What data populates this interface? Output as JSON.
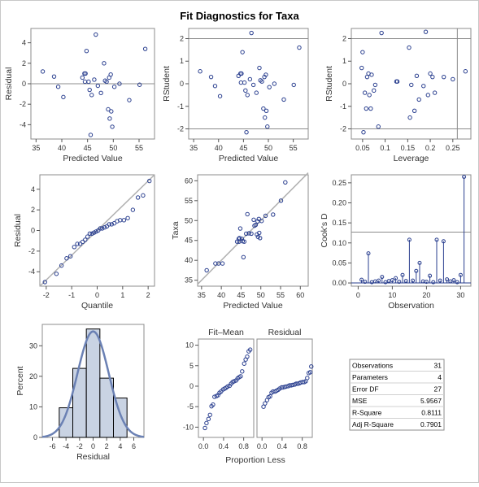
{
  "title": "Fit Diagnostics for Taxa",
  "colors": {
    "marker": "#2a3f8f",
    "ref_line": "#8c8c8c",
    "fit_line": "#b0b0b0",
    "bar_fill": "#c9d3e3",
    "curve": "#6b81b4"
  },
  "chart_data": [
    {
      "id": "residual-vs-predicted",
      "type": "scatter",
      "xlabel": "Predicted Value",
      "ylabel": "Residual",
      "xlim": [
        34,
        58
      ],
      "ylim": [
        -5.4,
        5.4
      ],
      "xticks": [
        35,
        40,
        45,
        50,
        55
      ],
      "yticks": [
        -4,
        -2,
        0,
        2,
        4
      ],
      "ref_y": [
        0
      ],
      "points": [
        [
          36.3,
          1.2
        ],
        [
          38.5,
          0.7
        ],
        [
          39.3,
          -0.3
        ],
        [
          40.3,
          -1.3
        ],
        [
          44,
          0.6
        ],
        [
          44.4,
          1
        ],
        [
          44.6,
          1
        ],
        [
          44.8,
          3.2
        ],
        [
          44.5,
          0.2
        ],
        [
          45.2,
          0.2
        ],
        [
          45.4,
          -0.6
        ],
        [
          45.6,
          -5
        ],
        [
          45.8,
          -1.1
        ],
        [
          46.3,
          0.4
        ],
        [
          46.6,
          4.8
        ],
        [
          47,
          -0.2
        ],
        [
          47.6,
          -0.9
        ],
        [
          48.2,
          2
        ],
        [
          48.7,
          0.2
        ],
        [
          48.4,
          0.3
        ],
        [
          49,
          -2.5
        ],
        [
          49.2,
          0.6
        ],
        [
          49.5,
          0.9
        ],
        [
          49.3,
          -3.4
        ],
        [
          49.8,
          -4.2
        ],
        [
          49.6,
          -2.7
        ],
        [
          50.2,
          -0.3
        ],
        [
          51.2,
          0
        ],
        [
          53.1,
          -1.6
        ],
        [
          55.1,
          -0.1
        ],
        [
          56.2,
          3.4
        ]
      ]
    },
    {
      "id": "rstudent-vs-predicted",
      "type": "scatter",
      "xlabel": "Predicted Value",
      "ylabel": "RStudent",
      "xlim": [
        34,
        58
      ],
      "ylim": [
        -2.45,
        2.45
      ],
      "xticks": [
        35,
        40,
        45,
        50,
        55
      ],
      "yticks": [
        -2,
        -1,
        0,
        1,
        2
      ],
      "ref_y": [
        -2,
        2
      ],
      "points": [
        [
          36.3,
          0.55
        ],
        [
          38.5,
          0.3
        ],
        [
          39.3,
          -0.1
        ],
        [
          40.3,
          -0.55
        ],
        [
          44,
          0.35
        ],
        [
          44.4,
          0.45
        ],
        [
          44.6,
          0.45
        ],
        [
          44.8,
          1.4
        ],
        [
          44.5,
          0.05
        ],
        [
          45.2,
          0.05
        ],
        [
          45.4,
          -0.3
        ],
        [
          45.6,
          -2.15
        ],
        [
          45.8,
          -0.5
        ],
        [
          46.3,
          0.2
        ],
        [
          46.6,
          2.25
        ],
        [
          47,
          -0.05
        ],
        [
          47.6,
          -0.4
        ],
        [
          48.2,
          0.7
        ],
        [
          48.7,
          0.1
        ],
        [
          48.4,
          0.15
        ],
        [
          49,
          -1.1
        ],
        [
          49.2,
          0.3
        ],
        [
          49.5,
          0.4
        ],
        [
          49.3,
          -1.5
        ],
        [
          49.8,
          -1.9
        ],
        [
          49.6,
          -1.2
        ],
        [
          50.2,
          -0.15
        ],
        [
          51.2,
          0
        ],
        [
          53.1,
          -0.7
        ],
        [
          55.1,
          -0.05
        ],
        [
          56.2,
          1.6
        ]
      ]
    },
    {
      "id": "rstudent-vs-leverage",
      "type": "scatter",
      "xlabel": "Leverage",
      "ylabel": "RStudent",
      "xlim": [
        0.025,
        0.29
      ],
      "ylim": [
        -2.45,
        2.45
      ],
      "xticks": [
        0.05,
        0.1,
        0.15,
        0.2,
        0.25
      ],
      "yticks": [
        -2,
        -1,
        0,
        1,
        2
      ],
      "ref_y": [
        -2,
        2
      ],
      "ref_x": [
        0.26
      ],
      "points": [
        [
          0.048,
          0.7
        ],
        [
          0.05,
          1.4
        ],
        [
          0.052,
          -2.15
        ],
        [
          0.055,
          -0.4
        ],
        [
          0.058,
          -1.1
        ],
        [
          0.06,
          0.3
        ],
        [
          0.063,
          0.45
        ],
        [
          0.065,
          -0.5
        ],
        [
          0.068,
          -1.1
        ],
        [
          0.07,
          0.4
        ],
        [
          0.075,
          -0.3
        ],
        [
          0.078,
          -0.05
        ],
        [
          0.085,
          -1.9
        ],
        [
          0.092,
          2.25
        ],
        [
          0.125,
          0.1
        ],
        [
          0.127,
          0.1
        ],
        [
          0.153,
          1.6
        ],
        [
          0.155,
          -1.5
        ],
        [
          0.158,
          -0.05
        ],
        [
          0.165,
          -1.2
        ],
        [
          0.17,
          0.35
        ],
        [
          0.175,
          -0.7
        ],
        [
          0.185,
          -0.1
        ],
        [
          0.19,
          2.3
        ],
        [
          0.195,
          -0.5
        ],
        [
          0.2,
          0.45
        ],
        [
          0.205,
          0.3
        ],
        [
          0.21,
          -0.4
        ],
        [
          0.23,
          0.3
        ],
        [
          0.25,
          0.2
        ],
        [
          0.278,
          0.55
        ]
      ]
    },
    {
      "id": "residual-qq",
      "type": "scatter",
      "xlabel": "Quantile",
      "ylabel": "Residual",
      "xlim": [
        -2.25,
        2.25
      ],
      "ylim": [
        -5.4,
        5.4
      ],
      "xticks": [
        -2,
        -1,
        0,
        1,
        2
      ],
      "yticks": [
        -4,
        -2,
        0,
        2,
        4
      ],
      "fit_line": [
        [
          -2.25,
          -5.4
        ],
        [
          2.25,
          5.4
        ]
      ],
      "points": [
        [
          -2.05,
          -5
        ],
        [
          -1.6,
          -4.2
        ],
        [
          -1.4,
          -3.4
        ],
        [
          -1.2,
          -2.7
        ],
        [
          -1.05,
          -2.5
        ],
        [
          -0.9,
          -1.6
        ],
        [
          -0.78,
          -1.3
        ],
        [
          -0.67,
          -1.3
        ],
        [
          -0.57,
          -1.1
        ],
        [
          -0.47,
          -0.9
        ],
        [
          -0.38,
          -0.6
        ],
        [
          -0.29,
          -0.3
        ],
        [
          -0.2,
          -0.3
        ],
        [
          -0.12,
          -0.2
        ],
        [
          -0.04,
          -0.1
        ],
        [
          0.04,
          0
        ],
        [
          0.12,
          0.2
        ],
        [
          0.2,
          0.2
        ],
        [
          0.29,
          0.3
        ],
        [
          0.38,
          0.4
        ],
        [
          0.47,
          0.6
        ],
        [
          0.57,
          0.6
        ],
        [
          0.67,
          0.7
        ],
        [
          0.78,
          0.9
        ],
        [
          0.9,
          1
        ],
        [
          1.05,
          1
        ],
        [
          1.2,
          1.2
        ],
        [
          1.4,
          2
        ],
        [
          1.6,
          3.2
        ],
        [
          2.05,
          4.8
        ],
        [
          1.8,
          3.4
        ]
      ]
    },
    {
      "id": "observed-vs-predicted",
      "type": "scatter",
      "xlabel": "Predicted Value",
      "ylabel": "Taxa",
      "xlim": [
        34,
        62
      ],
      "ylim": [
        33.5,
        61.5
      ],
      "xticks": [
        35,
        40,
        45,
        50,
        55,
        60
      ],
      "yticks": [
        35,
        40,
        45,
        50,
        55,
        60
      ],
      "fit_line": [
        [
          34,
          34
        ],
        [
          62,
          62
        ]
      ],
      "points": [
        [
          36.3,
          37.5
        ],
        [
          38.5,
          39.2
        ],
        [
          39.3,
          39.2
        ],
        [
          40.3,
          39.2
        ],
        [
          44,
          44.7
        ],
        [
          44.4,
          45.4
        ],
        [
          44.6,
          45.6
        ],
        [
          44.8,
          48
        ],
        [
          44.5,
          44.7
        ],
        [
          45.2,
          45.4
        ],
        [
          45.4,
          44.8
        ],
        [
          45.6,
          40.8
        ],
        [
          45.8,
          44.7
        ],
        [
          46.3,
          46.7
        ],
        [
          46.6,
          51.6
        ],
        [
          47,
          46.8
        ],
        [
          47.6,
          46.7
        ],
        [
          48.2,
          50.2
        ],
        [
          48.7,
          48.9
        ],
        [
          48.4,
          48.7
        ],
        [
          49,
          46.5
        ],
        [
          49.2,
          49.8
        ],
        [
          49.5,
          50.4
        ],
        [
          49.3,
          45.9
        ],
        [
          49.8,
          45.6
        ],
        [
          49.6,
          46.9
        ],
        [
          50.2,
          49.9
        ],
        [
          51.2,
          51.2
        ],
        [
          53.1,
          51.5
        ],
        [
          55.1,
          55
        ],
        [
          56.2,
          59.6
        ]
      ]
    },
    {
      "id": "cooks-d",
      "type": "needle",
      "xlabel": "Observation",
      "ylabel": "Cook's D",
      "xlim": [
        -2,
        33
      ],
      "ylim": [
        -0.008,
        0.27
      ],
      "xticks": [
        0,
        10,
        20,
        30
      ],
      "yticks": [
        0.0,
        0.05,
        0.1,
        0.15,
        0.2,
        0.25
      ],
      "ytick_labels": [
        "0.00",
        "0.05",
        "0.10",
        "0.15",
        "0.20",
        "0.25"
      ],
      "ref_y": [
        0.127
      ],
      "values": [
        0.008,
        0.003,
        0.074,
        0.002,
        0.004,
        0.006,
        0.015,
        0.002,
        0.005,
        0.007,
        0.012,
        0.003,
        0.02,
        0.005,
        0.108,
        0.006,
        0.03,
        0.05,
        0.004,
        0.003,
        0.018,
        0.002,
        0.108,
        0.006,
        0.104,
        0.009,
        0.004,
        0.007,
        0.002,
        0.02,
        0.265
      ]
    },
    {
      "id": "residual-histogram",
      "type": "bar",
      "xlabel": "Residual",
      "ylabel": "Percent",
      "xlim": [
        -7.5,
        7.5
      ],
      "ylim": [
        0,
        37
      ],
      "xticks": [
        -6,
        -4,
        -2,
        0,
        2,
        4,
        6
      ],
      "yticks": [
        0,
        10,
        20,
        30
      ],
      "bin_edges": [
        -5,
        -3,
        -1,
        1,
        3,
        5
      ],
      "values": [
        9.7,
        22.6,
        35.5,
        19.4,
        12.9
      ],
      "normal_curve": {
        "mean": 0,
        "sd": 2.3
      }
    },
    {
      "id": "residual-fit-spread",
      "type": "scatter",
      "xlabel": "Proportion Less",
      "ylabel": "",
      "panel_labels": [
        "Fit–Mean",
        "Residual"
      ],
      "xlim": [
        -0.1,
        1.0
      ],
      "ylim": [
        -12.5,
        11.5
      ],
      "xticks": [
        0.0,
        0.4,
        0.8
      ],
      "xtick_labels": [
        "0.0",
        "0.4",
        "0.8"
      ],
      "yticks": [
        -10,
        -5,
        0,
        5,
        10
      ],
      "series": [
        {
          "points": [
            [
              0.03,
              -10.2
            ],
            [
              0.06,
              -9
            ],
            [
              0.1,
              -8
            ],
            [
              0.13,
              -7
            ],
            [
              0.16,
              -4.9
            ],
            [
              0.19,
              -4.5
            ],
            [
              0.22,
              -2.6
            ],
            [
              0.26,
              -2.4
            ],
            [
              0.29,
              -2.2
            ],
            [
              0.32,
              -1.6
            ],
            [
              0.35,
              -1.3
            ],
            [
              0.39,
              -0.8
            ],
            [
              0.42,
              -0.6
            ],
            [
              0.45,
              -0.4
            ],
            [
              0.48,
              -0.1
            ],
            [
              0.52,
              0.1
            ],
            [
              0.55,
              0.6
            ],
            [
              0.58,
              1
            ],
            [
              0.61,
              1.2
            ],
            [
              0.65,
              1.4
            ],
            [
              0.68,
              1.9
            ],
            [
              0.71,
              2.2
            ],
            [
              0.74,
              2.4
            ],
            [
              0.77,
              3.6
            ],
            [
              0.81,
              5.5
            ],
            [
              0.84,
              6.5
            ],
            [
              0.87,
              7.2
            ],
            [
              0.9,
              8.5
            ],
            [
              0.93,
              8.9
            ]
          ]
        },
        {
          "points": [
            [
              0.03,
              -5
            ],
            [
              0.06,
              -4.2
            ],
            [
              0.1,
              -3.4
            ],
            [
              0.13,
              -2.7
            ],
            [
              0.16,
              -2.5
            ],
            [
              0.19,
              -1.6
            ],
            [
              0.22,
              -1.3
            ],
            [
              0.26,
              -1.3
            ],
            [
              0.29,
              -1.1
            ],
            [
              0.32,
              -0.9
            ],
            [
              0.35,
              -0.6
            ],
            [
              0.39,
              -0.3
            ],
            [
              0.42,
              -0.3
            ],
            [
              0.45,
              -0.2
            ],
            [
              0.48,
              -0.1
            ],
            [
              0.52,
              0
            ],
            [
              0.55,
              0.2
            ],
            [
              0.58,
              0.2
            ],
            [
              0.61,
              0.3
            ],
            [
              0.65,
              0.4
            ],
            [
              0.68,
              0.6
            ],
            [
              0.71,
              0.6
            ],
            [
              0.74,
              0.7
            ],
            [
              0.77,
              0.9
            ],
            [
              0.81,
              1
            ],
            [
              0.84,
              1
            ],
            [
              0.87,
              1.2
            ],
            [
              0.9,
              2
            ],
            [
              0.93,
              3.2
            ],
            [
              0.96,
              3.4
            ],
            [
              0.98,
              4.8
            ]
          ]
        }
      ]
    }
  ],
  "stats_table": [
    {
      "label": "Observations",
      "value": "31"
    },
    {
      "label": "Parameters",
      "value": "4"
    },
    {
      "label": "Error DF",
      "value": "27"
    },
    {
      "label": "MSE",
      "value": "5.9567"
    },
    {
      "label": "R-Square",
      "value": "0.8111"
    },
    {
      "label": "Adj R-Square",
      "value": "0.7901"
    }
  ]
}
